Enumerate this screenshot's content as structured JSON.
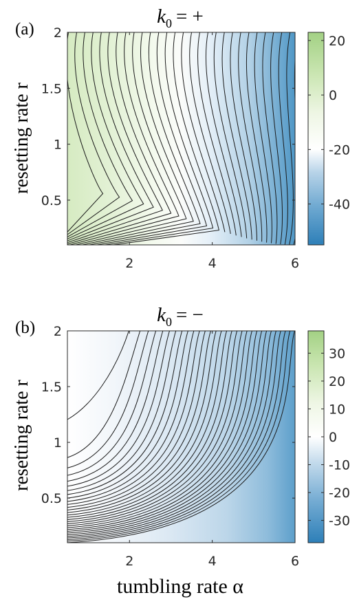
{
  "chart_data": [
    {
      "type": "heatmap",
      "panel_label": "(a)",
      "title_math": {
        "base": "k",
        "sub": "0",
        "rel": "= +"
      },
      "xlabel": "",
      "ylabel": "resetting rate r",
      "xlim": [
        0.5,
        6
      ],
      "ylim": [
        0.1,
        2
      ],
      "xticks": [
        2,
        4,
        6
      ],
      "xtick_labels": [
        "2",
        "4",
        "6"
      ],
      "yticks": [
        0.5,
        1,
        1.5,
        2
      ],
      "ytick_labels": [
        "0.5",
        "1",
        "1.5",
        "2"
      ],
      "colorbar": {
        "range": [
          -55,
          23
        ],
        "ticks": [
          20,
          0,
          -20,
          -40
        ],
        "tick_labels": [
          "20",
          "0",
          "-20",
          "-40"
        ],
        "colors": [
          "#2d7fb8",
          "#8fbcd9",
          "#ffffff",
          "#eef6df",
          "#a9d48a"
        ]
      },
      "contour_lines": 30,
      "grid": false
    },
    {
      "type": "heatmap",
      "panel_label": "(b)",
      "title_math": {
        "base": "k",
        "sub": "0",
        "rel": "= −"
      },
      "xlabel": "tumbling rate α",
      "ylabel": "resetting rate r",
      "xlim": [
        0.5,
        6
      ],
      "ylim": [
        0.1,
        2
      ],
      "xticks": [
        2,
        4,
        6
      ],
      "xtick_labels": [
        "2",
        "4",
        "6"
      ],
      "yticks": [
        0.5,
        1,
        1.5,
        2
      ],
      "ytick_labels": [
        "0.5",
        "1",
        "1.5",
        "2"
      ],
      "colorbar": {
        "range": [
          -38,
          38
        ],
        "ticks": [
          30,
          20,
          10,
          0,
          -10,
          -20,
          -30
        ],
        "tick_labels": [
          "30",
          "20",
          "10",
          "0",
          "-10",
          "-20",
          "-30"
        ],
        "colors": [
          "#2d7fb8",
          "#8fbcd9",
          "#ffffff",
          "#eef6df",
          "#a9d48a"
        ]
      },
      "contour_lines": 30,
      "grid": false
    }
  ]
}
